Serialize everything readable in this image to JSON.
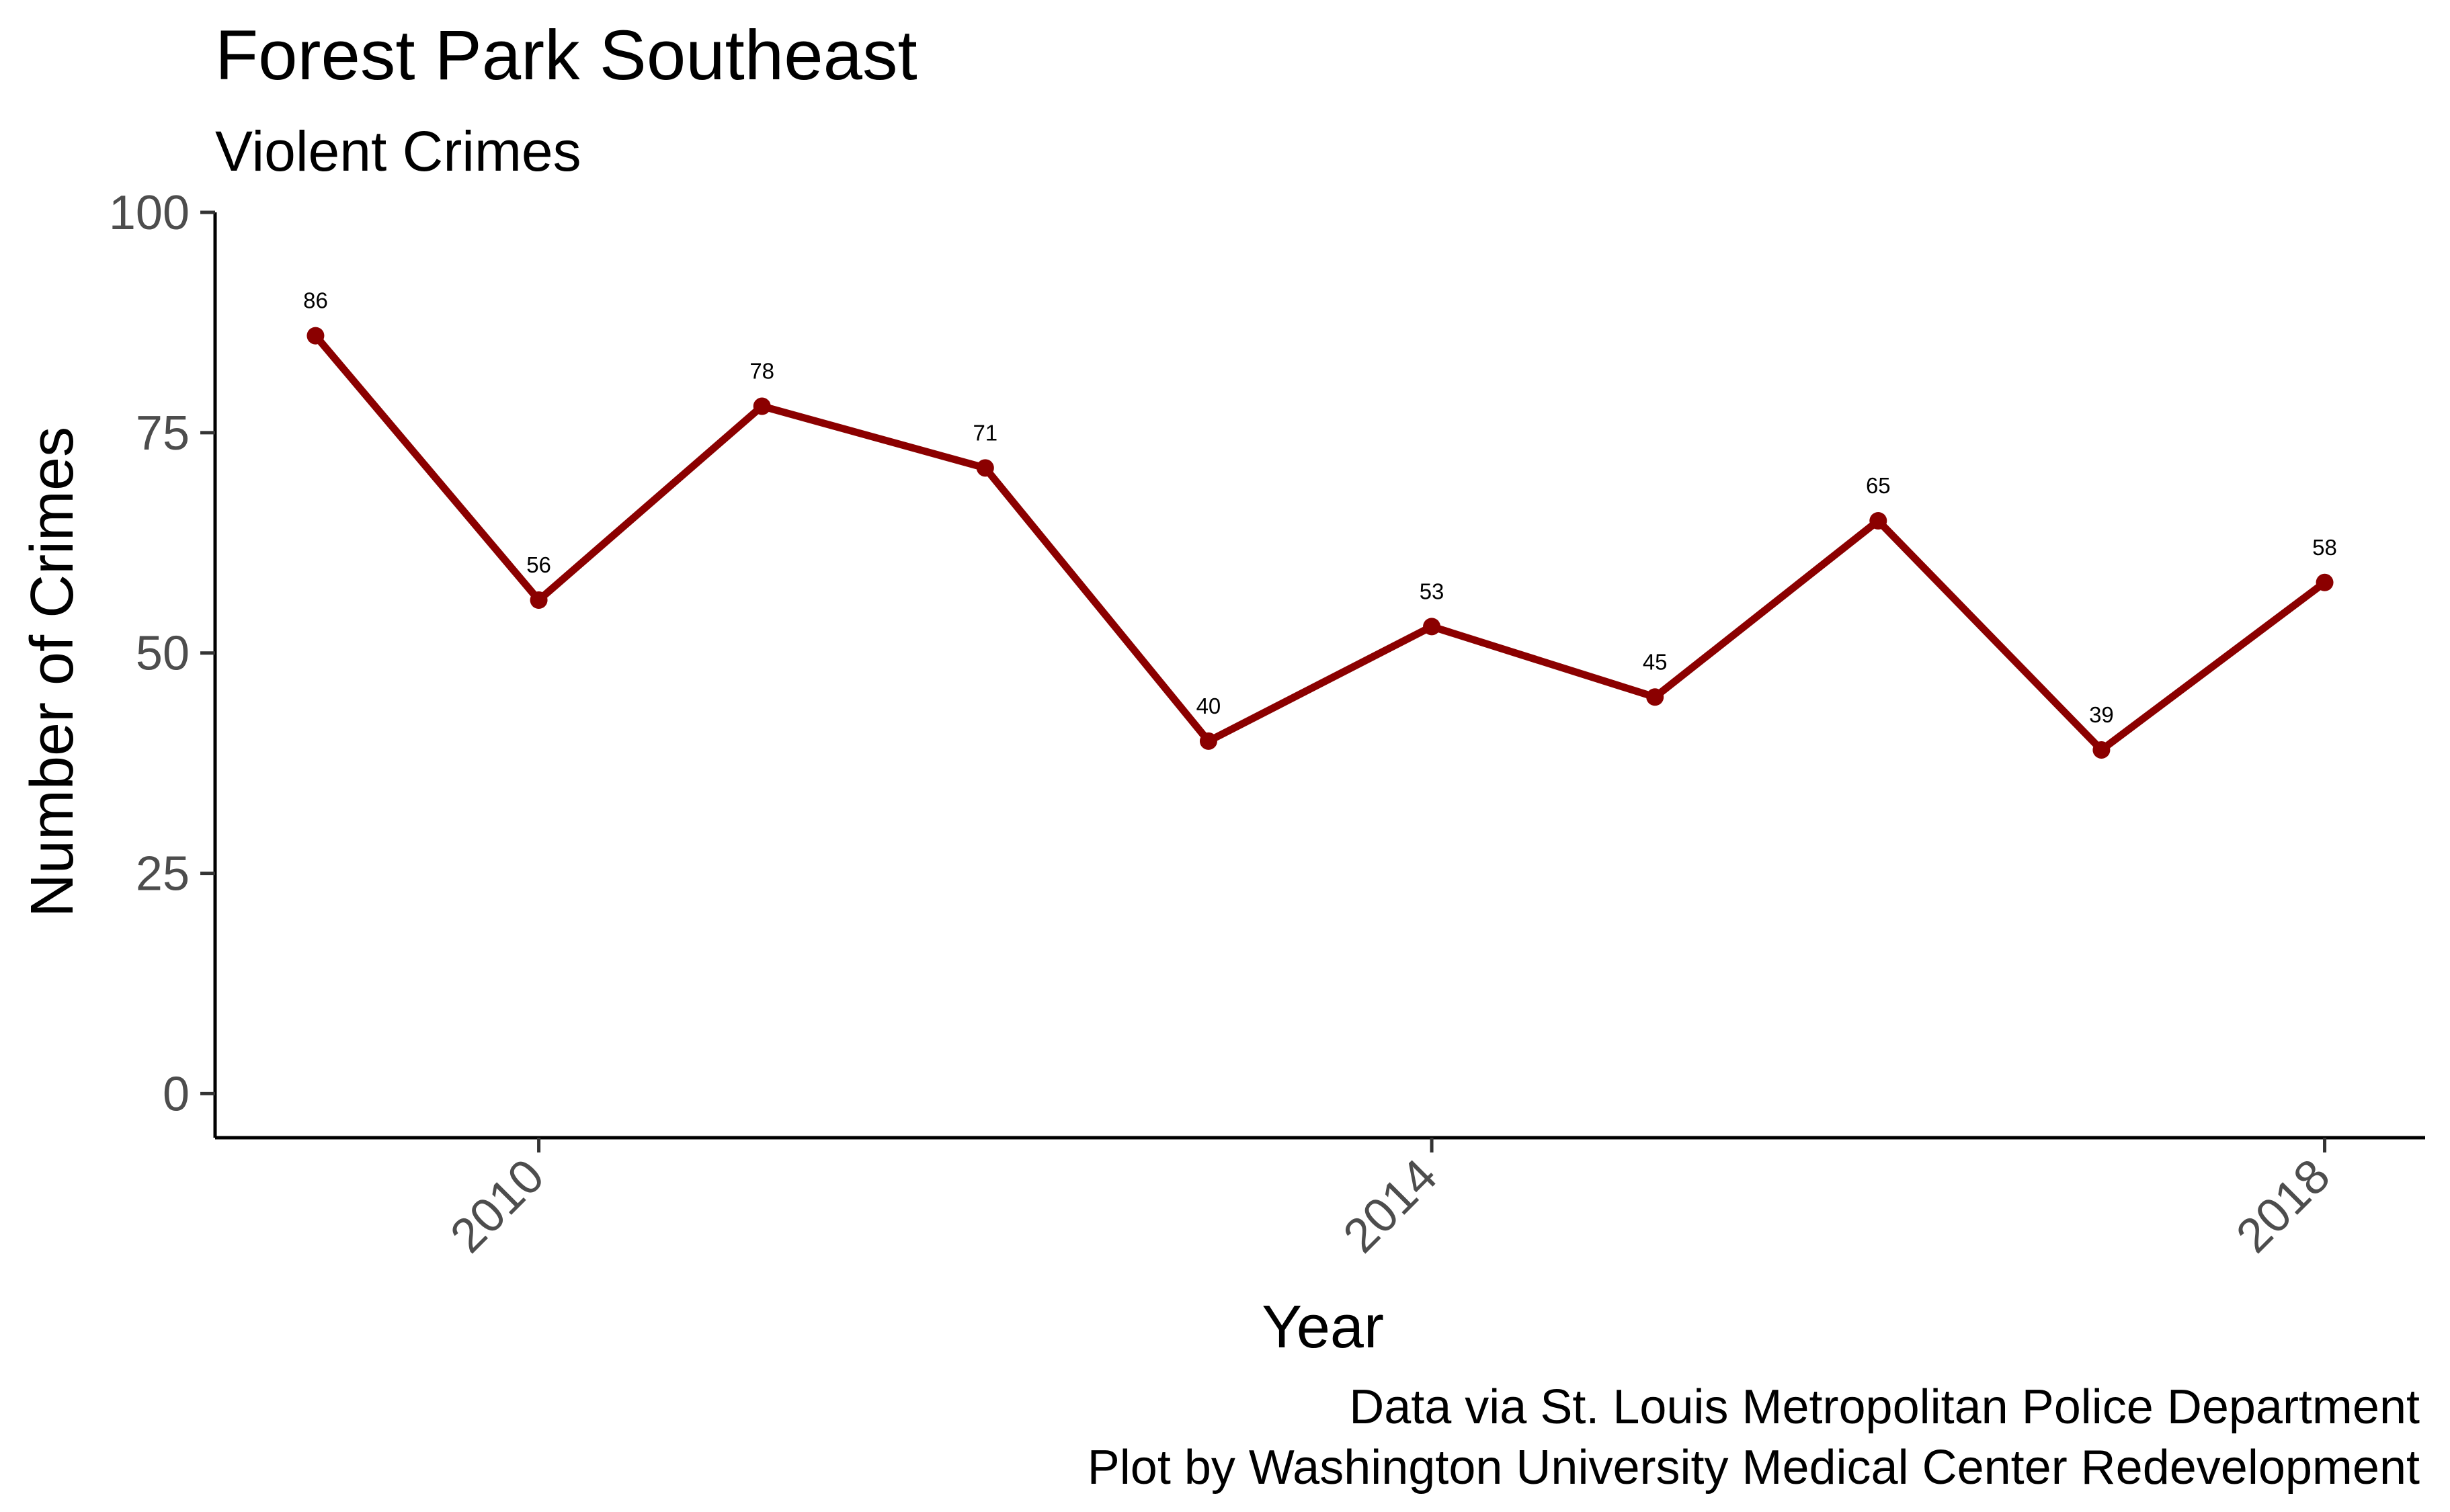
{
  "chart_data": {
    "type": "line",
    "title": "Forest Park Southeast",
    "subtitle": "Violent Crimes",
    "xlabel": "Year",
    "ylabel": "Number of Crimes",
    "x": [
      2009,
      2010,
      2011,
      2012,
      2013,
      2014,
      2015,
      2016,
      2017,
      2018
    ],
    "series": [
      {
        "values": [
          86,
          56,
          78,
          71,
          40,
          53,
          45,
          65,
          39,
          58
        ],
        "color": "#8B0000"
      }
    ],
    "data_labels": [
      "86",
      "56",
      "78",
      "71",
      "40",
      "53",
      "45",
      "65",
      "39",
      "58"
    ],
    "xlim": [
      2008.55,
      2018.45
    ],
    "ylim": [
      -5,
      100
    ],
    "xticks": [
      2010,
      2014,
      2018
    ],
    "xtick_labels": [
      "2010",
      "2014",
      "2018"
    ],
    "yticks": [
      0,
      25,
      50,
      75,
      100
    ],
    "ytick_labels": [
      "0",
      "25",
      "50",
      "75",
      "100"
    ],
    "grid": false,
    "legend": "none",
    "caption": [
      "Data via St. Louis Metropolitan Police Department ",
      "Plot by Washington University Medical Center Redevelopment"
    ]
  }
}
